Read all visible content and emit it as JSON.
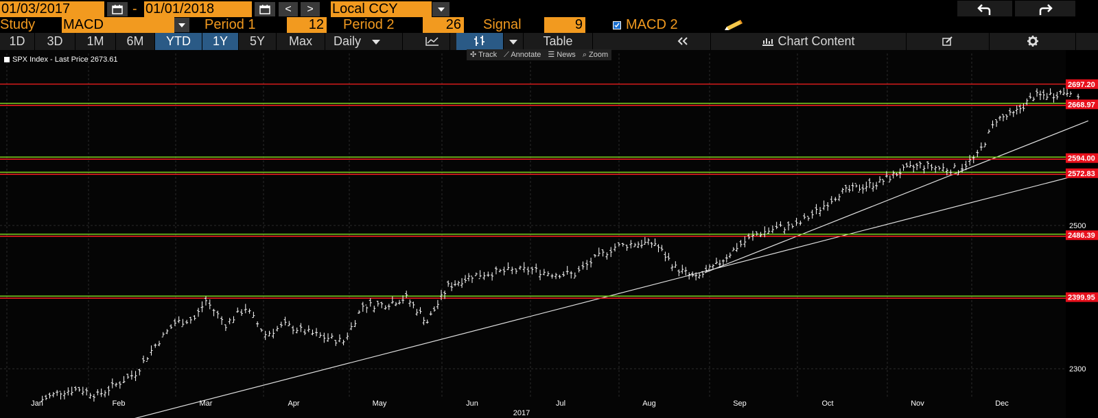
{
  "toolbar": {
    "start_date": "01/03/2017",
    "date_separator": "-",
    "end_date": "01/01/2018",
    "prev_label": "<",
    "next_label": ">",
    "currency": "Local CCY",
    "undo_icon": "undo-arrow-icon",
    "redo_icon": "redo-arrow-icon"
  },
  "study": {
    "label": "Study",
    "value": "MACD",
    "period1_label": "Period 1",
    "period1_value": "12",
    "period2_label": "Period 2",
    "period2_value": "26",
    "signal_label": "Signal",
    "signal_value": "9",
    "macd2_label": "MACD 2",
    "macd2_checked": true
  },
  "range_tabs": [
    {
      "label": "1D",
      "active": false
    },
    {
      "label": "3D",
      "active": false
    },
    {
      "label": "1M",
      "active": false
    },
    {
      "label": "6M",
      "active": false
    },
    {
      "label": "YTD",
      "active": true
    },
    {
      "label": "1Y",
      "active": true
    },
    {
      "label": "5Y",
      "active": false
    },
    {
      "label": "Max",
      "active": false
    }
  ],
  "frequency": "Daily",
  "table_label": "Table",
  "chart_content_label": "Chart Content",
  "subtools": [
    "Track",
    "Annotate",
    "News",
    "Zoom"
  ],
  "colors": {
    "accent_orange": "#f29a1f",
    "active_tab_blue": "#2a5a86",
    "resistance_red": "#ff2020",
    "support_green": "#7ed321",
    "price_label_bg": "#e8101c"
  },
  "chart_data": {
    "type": "ohlc",
    "legend": "SPX Index - Last Price 2673.61",
    "x_labels": [
      "Jan",
      "Feb",
      "Mar",
      "Apr",
      "May",
      "Jun",
      "Jul",
      "Aug",
      "Sep",
      "Oct",
      "Nov",
      "Dec"
    ],
    "year_label": "2017",
    "y_ticks": [
      2300,
      2500
    ],
    "ylim": [
      2260,
      2740
    ],
    "horizontal_levels": [
      {
        "value": 2697.2,
        "label": "2697.20",
        "style": "red"
      },
      {
        "value": 2668.97,
        "label": "2668.97",
        "style": "red-green"
      },
      {
        "value": 2594.0,
        "label": "2594.00",
        "style": "red-green"
      },
      {
        "value": 2572.83,
        "label": "2572.83",
        "style": "red-green"
      },
      {
        "value": 2486.39,
        "label": "2486.39",
        "style": "red-green"
      },
      {
        "value": 2399.95,
        "label": "2399.95",
        "style": "red-green"
      }
    ],
    "trendlines": [
      {
        "from": [
          "2017-02-01",
          2225
        ],
        "to": [
          "2017-12-31",
          2574
        ]
      },
      {
        "from": [
          "2017-08-20",
          2434
        ],
        "to": [
          "2017-12-31",
          2646
        ]
      }
    ],
    "series": [
      {
        "month": 0,
        "day": 3,
        "close": 2257
      },
      {
        "month": 0,
        "day": 10,
        "close": 2268
      },
      {
        "month": 0,
        "day": 17,
        "close": 2272
      },
      {
        "month": 0,
        "day": 24,
        "close": 2263
      },
      {
        "month": 0,
        "day": 31,
        "close": 2278
      },
      {
        "month": 1,
        "day": 7,
        "close": 2294
      },
      {
        "month": 1,
        "day": 14,
        "close": 2333
      },
      {
        "month": 1,
        "day": 21,
        "close": 2364
      },
      {
        "month": 1,
        "day": 28,
        "close": 2370
      },
      {
        "month": 2,
        "day": 1,
        "close": 2395
      },
      {
        "month": 2,
        "day": 8,
        "close": 2362
      },
      {
        "month": 2,
        "day": 15,
        "close": 2385
      },
      {
        "month": 2,
        "day": 22,
        "close": 2348
      },
      {
        "month": 2,
        "day": 29,
        "close": 2361
      },
      {
        "month": 3,
        "day": 5,
        "close": 2352
      },
      {
        "month": 3,
        "day": 12,
        "close": 2344
      },
      {
        "month": 3,
        "day": 19,
        "close": 2338
      },
      {
        "month": 3,
        "day": 26,
        "close": 2388
      },
      {
        "month": 4,
        "day": 3,
        "close": 2390
      },
      {
        "month": 4,
        "day": 10,
        "close": 2399
      },
      {
        "month": 4,
        "day": 17,
        "close": 2366
      },
      {
        "month": 4,
        "day": 24,
        "close": 2415
      },
      {
        "month": 5,
        "day": 1,
        "close": 2430
      },
      {
        "month": 5,
        "day": 8,
        "close": 2434
      },
      {
        "month": 5,
        "day": 15,
        "close": 2437
      },
      {
        "month": 5,
        "day": 22,
        "close": 2438
      },
      {
        "month": 5,
        "day": 29,
        "close": 2433
      },
      {
        "month": 6,
        "day": 6,
        "close": 2432
      },
      {
        "month": 6,
        "day": 13,
        "close": 2453
      },
      {
        "month": 6,
        "day": 20,
        "close": 2470
      },
      {
        "month": 6,
        "day": 27,
        "close": 2475
      },
      {
        "month": 7,
        "day": 3,
        "close": 2475
      },
      {
        "month": 7,
        "day": 10,
        "close": 2441
      },
      {
        "month": 7,
        "day": 17,
        "close": 2426
      },
      {
        "month": 7,
        "day": 24,
        "close": 2444
      },
      {
        "month": 7,
        "day": 31,
        "close": 2470
      },
      {
        "month": 8,
        "day": 7,
        "close": 2488
      },
      {
        "month": 8,
        "day": 14,
        "close": 2496
      },
      {
        "month": 8,
        "day": 21,
        "close": 2500
      },
      {
        "month": 8,
        "day": 28,
        "close": 2519
      },
      {
        "month": 9,
        "day": 5,
        "close": 2545
      },
      {
        "month": 9,
        "day": 12,
        "close": 2553
      },
      {
        "month": 9,
        "day": 19,
        "close": 2560
      },
      {
        "month": 9,
        "day": 26,
        "close": 2575
      },
      {
        "month": 10,
        "day": 2,
        "close": 2584
      },
      {
        "month": 10,
        "day": 9,
        "close": 2580
      },
      {
        "month": 10,
        "day": 16,
        "close": 2578
      },
      {
        "month": 10,
        "day": 23,
        "close": 2597
      },
      {
        "month": 10,
        "day": 30,
        "close": 2648
      },
      {
        "month": 11,
        "day": 5,
        "close": 2655
      },
      {
        "month": 11,
        "day": 12,
        "close": 2680
      },
      {
        "month": 11,
        "day": 19,
        "close": 2683
      },
      {
        "month": 11,
        "day": 26,
        "close": 2690
      },
      {
        "month": 11,
        "day": 29,
        "close": 2673.61
      }
    ]
  }
}
